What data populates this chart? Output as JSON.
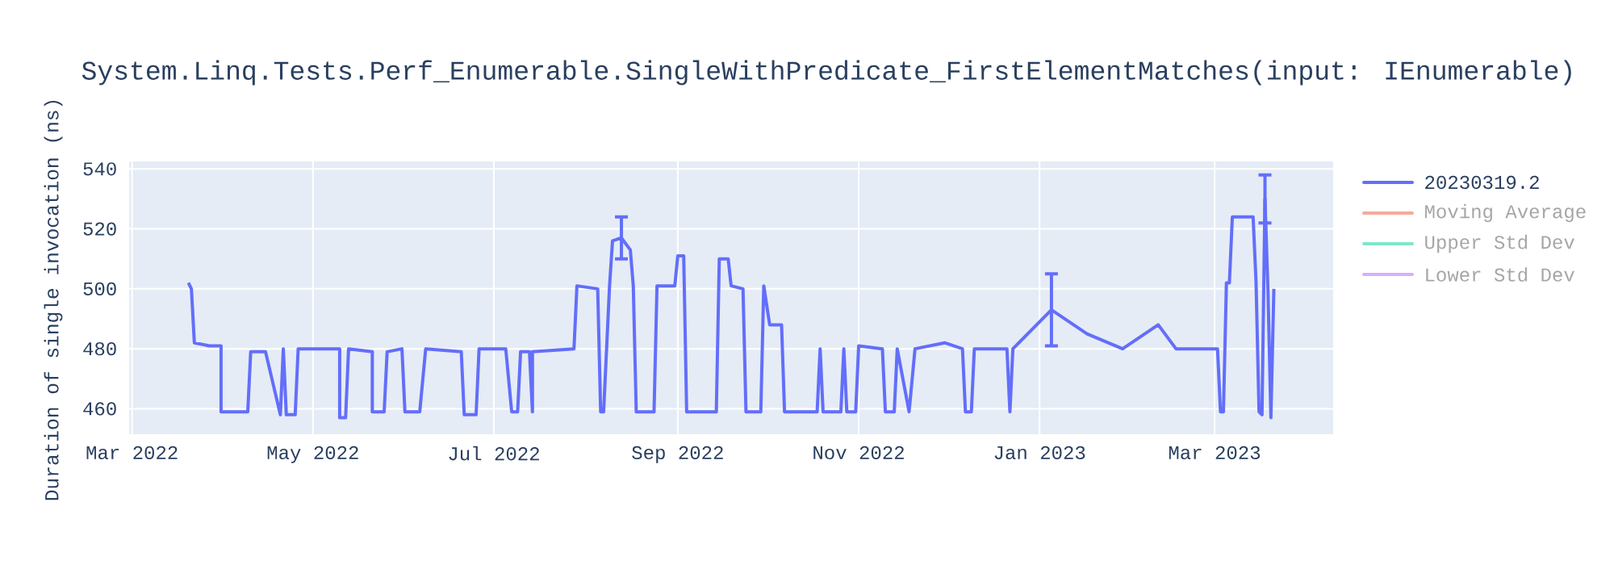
{
  "chart_data": {
    "type": "line",
    "title": "System.Linq.Tests.Perf_Enumerable.SingleWithPredicate_FirstElementMatches(input: IEnumerable)",
    "ylabel": "Duration of single invocation (ns)",
    "xlim": [
      "2022-02-28",
      "2023-04-10"
    ],
    "xticks": [
      {
        "value": "2022-03-01",
        "label": "Mar 2022"
      },
      {
        "value": "2022-05-01",
        "label": "May 2022"
      },
      {
        "value": "2022-07-01",
        "label": "Jul 2022"
      },
      {
        "value": "2022-09-01",
        "label": "Sep 2022"
      },
      {
        "value": "2022-11-01",
        "label": "Nov 2022"
      },
      {
        "value": "2023-01-01",
        "label": "Jan 2023"
      },
      {
        "value": "2023-03-01",
        "label": "Mar 2023"
      }
    ],
    "ylim": [
      451.5,
      542.5
    ],
    "yticks": [
      460,
      480,
      500,
      520,
      540
    ],
    "grid": true,
    "legend": "top right",
    "series": [
      {
        "name": "20230319.2",
        "color": "#636efa",
        "x": [
          "2022-03-20",
          "2022-03-21",
          "2022-03-22",
          "2022-03-27",
          "2022-03-31",
          "2022-03-31",
          "2022-04-09",
          "2022-04-10",
          "2022-04-15",
          "2022-04-20",
          "2022-04-21",
          "2022-04-22",
          "2022-04-25",
          "2022-04-26",
          "2022-05-10",
          "2022-05-10",
          "2022-05-12",
          "2022-05-13",
          "2022-05-21",
          "2022-05-21",
          "2022-05-25",
          "2022-05-26",
          "2022-05-31",
          "2022-06-01",
          "2022-06-06",
          "2022-06-08",
          "2022-06-20",
          "2022-06-21",
          "2022-06-25",
          "2022-06-26",
          "2022-07-05",
          "2022-07-07",
          "2022-07-09",
          "2022-07-10",
          "2022-07-13",
          "2022-07-14",
          "2022-07-14",
          "2022-07-28",
          "2022-07-29",
          "2022-08-05",
          "2022-08-06",
          "2022-08-07",
          "2022-08-09",
          "2022-08-10",
          "2022-08-13",
          "2022-08-16",
          "2022-08-17",
          "2022-08-18",
          "2022-08-24",
          "2022-08-25",
          "2022-08-31",
          "2022-09-01",
          "2022-09-03",
          "2022-09-04",
          "2022-09-14",
          "2022-09-15",
          "2022-09-18",
          "2022-09-19",
          "2022-09-23",
          "2022-09-24",
          "2022-09-29",
          "2022-09-30",
          "2022-10-02",
          "2022-10-06",
          "2022-10-07",
          "2022-10-09",
          "2022-10-18",
          "2022-10-19",
          "2022-10-20",
          "2022-10-26",
          "2022-10-27",
          "2022-10-28",
          "2022-10-31",
          "2022-11-01",
          "2022-11-09",
          "2022-11-10",
          "2022-11-13",
          "2022-11-14",
          "2022-11-18",
          "2022-11-20",
          "2022-11-30",
          "2022-12-06",
          "2022-12-07",
          "2022-12-09",
          "2022-12-10",
          "2022-12-21",
          "2022-12-22",
          "2022-12-23",
          "2023-01-05",
          "2023-01-17",
          "2023-01-29",
          "2023-02-10",
          "2023-02-16",
          "2023-03-02",
          "2023-03-03",
          "2023-03-04",
          "2023-03-05",
          "2023-03-06",
          "2023-03-07",
          "2023-03-11",
          "2023-03-14",
          "2023-03-15",
          "2023-03-16",
          "2023-03-17",
          "2023-03-18",
          "2023-03-19",
          "2023-03-20",
          "2023-03-21"
        ],
        "values": [
          502,
          500,
          482,
          481,
          481,
          459,
          459,
          479,
          479,
          458,
          480,
          458,
          458,
          480,
          480,
          457,
          457,
          480,
          479,
          459,
          459,
          479,
          480,
          459,
          459,
          480,
          479,
          458,
          458,
          480,
          480,
          459,
          459,
          479,
          479,
          459,
          479,
          480,
          501,
          500,
          459,
          459,
          501,
          516,
          517,
          513,
          501,
          459,
          459,
          501,
          501,
          511,
          511,
          459,
          459,
          510,
          510,
          501,
          500,
          459,
          459,
          501,
          488,
          488,
          459,
          459,
          459,
          480,
          459,
          459,
          480,
          459,
          459,
          481,
          480,
          459,
          459,
          480,
          459,
          480,
          482,
          480,
          459,
          459,
          480,
          480,
          459,
          480,
          493,
          485,
          480,
          488,
          480,
          480,
          459,
          459,
          502,
          502,
          524,
          524,
          524,
          502,
          459,
          458,
          530,
          500,
          457,
          500
        ],
        "errors": [
          null,
          null,
          null,
          null,
          null,
          null,
          null,
          null,
          null,
          null,
          null,
          null,
          null,
          null,
          null,
          null,
          null,
          null,
          null,
          null,
          null,
          null,
          null,
          null,
          null,
          null,
          null,
          null,
          null,
          null,
          null,
          null,
          null,
          null,
          null,
          null,
          null,
          null,
          null,
          null,
          null,
          null,
          null,
          null,
          7,
          null,
          null,
          null,
          null,
          null,
          null,
          null,
          null,
          null,
          null,
          null,
          null,
          null,
          null,
          null,
          null,
          null,
          null,
          null,
          null,
          null,
          null,
          null,
          null,
          null,
          null,
          null,
          null,
          null,
          null,
          null,
          null,
          null,
          null,
          null,
          null,
          null,
          null,
          null,
          null,
          null,
          null,
          null,
          12,
          null,
          null,
          null,
          null,
          null,
          null,
          null,
          null,
          null,
          null,
          null,
          null,
          null,
          null,
          null,
          8,
          null,
          null,
          null
        ]
      },
      {
        "name": "Moving Average",
        "color": "#f7aa9d"
      },
      {
        "name": "Upper Std Dev",
        "color": "#80e6cb"
      },
      {
        "name": "Lower Std Dev",
        "color": "#d5b1fc"
      }
    ]
  }
}
